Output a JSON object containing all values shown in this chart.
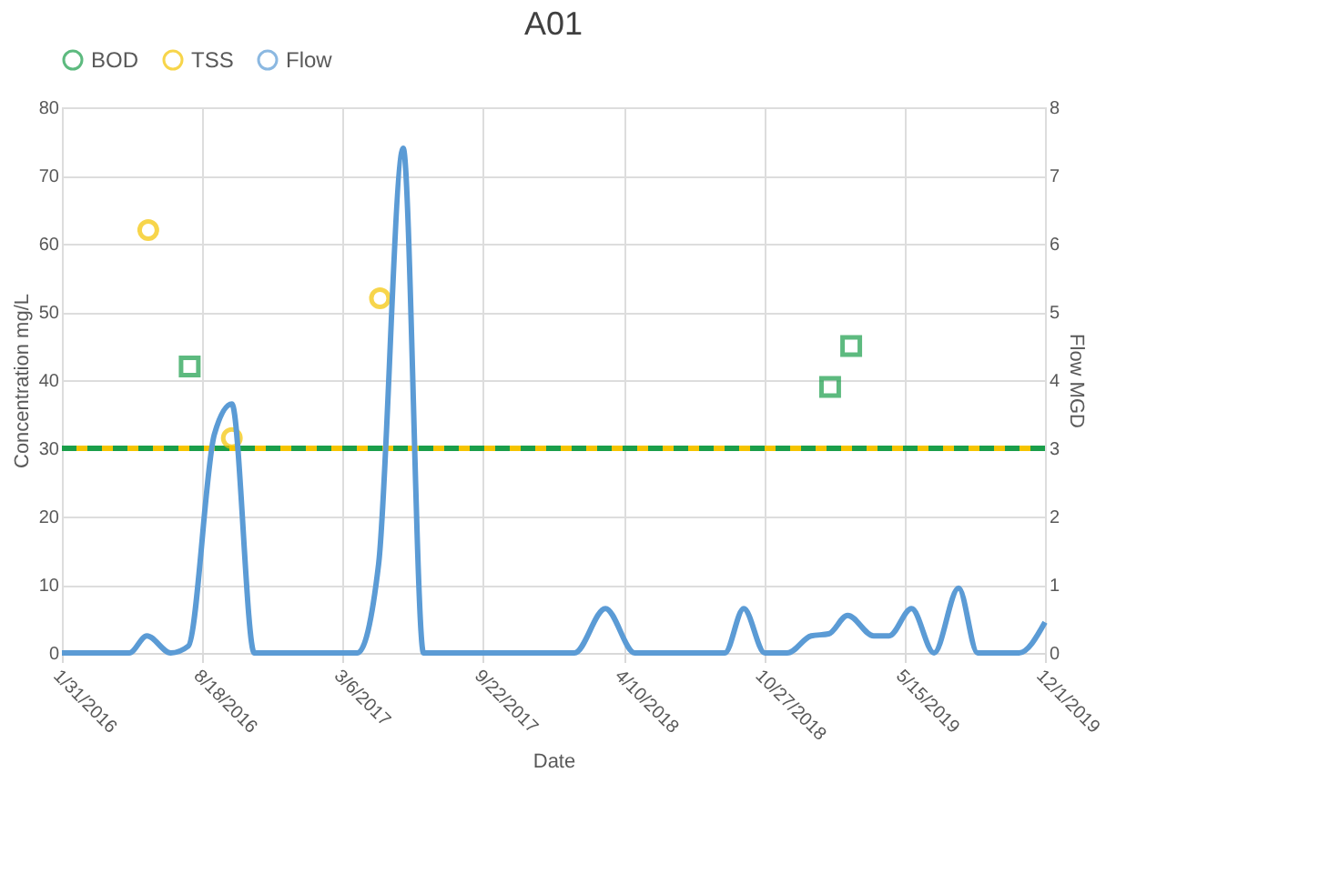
{
  "chart_data": {
    "type": "scatter",
    "title": "A01",
    "xlabel": "Date",
    "ylabel": "Concentration mg/L",
    "y2label": "Flow MGD",
    "xlim": [
      "2016-01-31",
      "2019-12-01"
    ],
    "xticks": [
      {
        "value": "2016-01-31",
        "label": "1/31/2016"
      },
      {
        "value": "2016-08-18",
        "label": "8/18/2016"
      },
      {
        "value": "2017-03-06",
        "label": "3/6/2017"
      },
      {
        "value": "2017-09-22",
        "label": "9/22/2017"
      },
      {
        "value": "2018-04-10",
        "label": "4/10/2018"
      },
      {
        "value": "2018-10-27",
        "label": "10/27/2018"
      },
      {
        "value": "2019-05-15",
        "label": "5/15/2019"
      },
      {
        "value": "2019-12-01",
        "label": "12/1/2019"
      }
    ],
    "ylim": [
      0,
      80
    ],
    "yticks": [
      0,
      10,
      20,
      30,
      40,
      50,
      60,
      70,
      80
    ],
    "y2lim": [
      0,
      8
    ],
    "y2ticks": [
      0,
      1,
      2,
      3,
      4,
      5,
      6,
      7,
      8
    ],
    "grid": true,
    "legend": "top",
    "series": [
      {
        "name": "BOD",
        "marker": "square",
        "color": "#1a9e4a",
        "x": [
          "2016-07-31",
          "2019-01-29",
          "2019-02-28"
        ],
        "values": [
          42,
          39,
          45
        ]
      },
      {
        "name": "TSS",
        "marker": "circle",
        "color": "#f5c400",
        "x": [
          "2016-06-02",
          "2016-09-29",
          "2017-04-28"
        ],
        "values": [
          62,
          31.5,
          52
        ]
      },
      {
        "name": "Flow",
        "type": "line",
        "axis": "y2",
        "marker": "none",
        "line_style": "solid",
        "color": "#5b9bd5",
        "x": [
          "2016-01-31",
          "2016-05-06",
          "2016-05-31",
          "2016-07-04",
          "2016-07-29",
          "2016-09-04",
          "2016-09-29",
          "2016-10-31",
          "2017-03-27",
          "2017-04-26",
          "2017-05-31",
          "2017-06-29",
          "2018-01-30",
          "2018-03-15",
          "2018-04-26",
          "2018-09-01",
          "2018-09-28",
          "2018-10-28",
          "2018-11-29",
          "2019-01-02",
          "2019-01-27",
          "2019-02-23",
          "2019-04-01",
          "2019-04-23",
          "2019-05-25",
          "2019-06-26",
          "2019-07-31",
          "2019-08-27",
          "2019-10-25",
          "2019-12-01"
        ],
        "values": [
          0,
          0,
          0.25,
          0,
          0.1,
          3.2,
          3.65,
          0,
          0,
          1.3,
          7.4,
          0,
          0,
          0.65,
          0,
          0,
          0.65,
          0,
          0,
          0.25,
          0.28,
          0.55,
          0.25,
          0.25,
          0.65,
          0,
          0.95,
          0,
          0,
          0.45
        ]
      }
    ],
    "ref_lines": [
      {
        "axis": "y",
        "value": 30,
        "color": "#f5c400",
        "line_style": "solid"
      },
      {
        "axis": "y",
        "value": 30,
        "color": "#1a9e4a",
        "line_style": "dashed"
      }
    ]
  }
}
